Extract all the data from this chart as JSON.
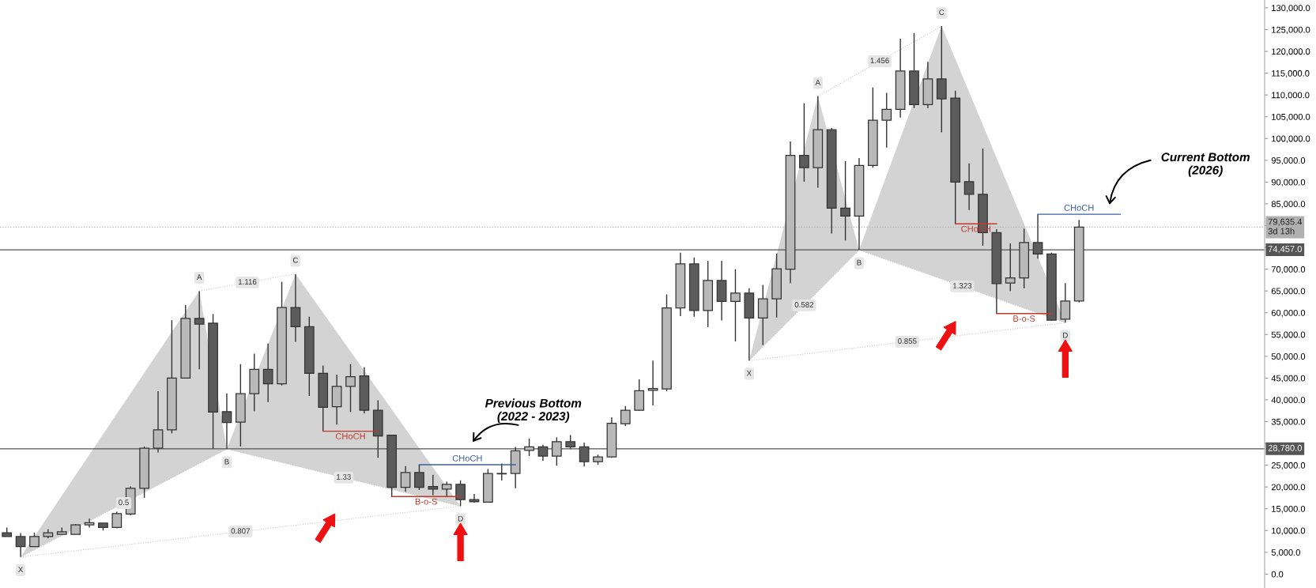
{
  "chart_data": {
    "type": "candlestick",
    "categories": [
      null,
      null,
      null,
      null,
      null,
      null,
      null,
      null,
      null,
      null,
      null,
      null,
      null,
      null,
      null,
      null,
      null,
      null,
      null,
      null,
      null,
      null,
      null,
      null,
      null,
      null,
      null,
      null,
      null,
      null,
      null,
      null,
      null,
      null,
      null,
      null,
      null,
      null,
      null,
      null,
      null,
      null,
      null,
      null,
      null,
      null,
      null,
      null,
      null,
      null,
      null,
      null,
      null,
      null,
      null,
      null,
      null,
      null,
      null,
      null,
      null,
      null,
      null,
      null,
      null,
      null,
      null,
      null,
      null,
      null,
      null,
      null,
      null,
      null,
      null,
      null,
      null,
      null,
      null,
      null,
      null,
      null,
      null,
      null,
      null,
      null,
      null,
      null,
      null,
      null,
      null,
      null
    ],
    "series": [
      {
        "color": "#333333",
        "ohlc": [
          [
            9500,
            10700,
            8600,
            8600
          ],
          [
            8600,
            9400,
            3900,
            6300
          ],
          [
            6300,
            9500,
            6300,
            8600
          ],
          [
            8600,
            10300,
            8200,
            9500
          ],
          [
            9100,
            10700,
            9100,
            9700
          ],
          [
            9100,
            11500,
            9100,
            11300
          ],
          [
            11300,
            12700,
            10700,
            11800
          ],
          [
            11700,
            11700,
            10000,
            10700
          ],
          [
            10700,
            14300,
            10500,
            13900
          ],
          [
            13800,
            20100,
            13500,
            19700
          ],
          [
            19700,
            29300,
            17500,
            28900
          ],
          [
            28900,
            42000,
            27900,
            33100
          ],
          [
            33100,
            58300,
            32300,
            45000
          ],
          [
            45000,
            61800,
            45000,
            58700
          ],
          [
            58700,
            65000,
            47000,
            57400
          ],
          [
            57600,
            59700,
            28800,
            37200
          ],
          [
            37300,
            41500,
            28700,
            34800
          ],
          [
            34900,
            48200,
            29300,
            41400
          ],
          [
            41400,
            50600,
            37400,
            47000
          ],
          [
            47000,
            52900,
            39500,
            43700
          ],
          [
            43700,
            67100,
            43300,
            61200
          ],
          [
            61200,
            68900,
            53300,
            56800
          ],
          [
            56800,
            59100,
            40900,
            46100
          ],
          [
            46100,
            47900,
            32800,
            38300
          ],
          [
            38400,
            45800,
            34300,
            43100
          ],
          [
            43100,
            48200,
            37200,
            45300
          ],
          [
            45500,
            47500,
            36900,
            37600
          ],
          [
            37600,
            39900,
            26700,
            31700
          ],
          [
            31900,
            32000,
            17800,
            19900
          ],
          [
            19900,
            24800,
            18900,
            23300
          ],
          [
            23300,
            25100,
            19300,
            19900
          ],
          [
            20100,
            22800,
            18100,
            19500
          ],
          [
            19500,
            21200,
            17800,
            20600
          ],
          [
            20600,
            21500,
            15600,
            17100
          ],
          [
            17100,
            18400,
            16400,
            16600
          ],
          [
            16500,
            24100,
            16500,
            23100
          ],
          [
            23000,
            25400,
            21500,
            23100
          ],
          [
            23100,
            29200,
            19700,
            28300
          ],
          [
            28400,
            31100,
            27100,
            29200
          ],
          [
            29200,
            29700,
            26000,
            27100
          ],
          [
            27100,
            31400,
            24900,
            30400
          ],
          [
            30400,
            31900,
            28700,
            29200
          ],
          [
            29200,
            30200,
            24700,
            25800
          ],
          [
            25800,
            27400,
            25100,
            26900
          ],
          [
            26900,
            36000,
            26700,
            34600
          ],
          [
            34500,
            38600,
            34000,
            37600
          ],
          [
            37600,
            44700,
            37500,
            42100
          ],
          [
            42200,
            49000,
            38700,
            42600
          ],
          [
            42500,
            64200,
            42000,
            61100
          ],
          [
            61100,
            73800,
            59200,
            71200
          ],
          [
            71200,
            72700,
            59100,
            60500
          ],
          [
            60500,
            71900,
            56700,
            67400
          ],
          [
            67400,
            71900,
            58200,
            62600
          ],
          [
            62600,
            70000,
            53400,
            64500
          ],
          [
            64500,
            65600,
            49000,
            58800
          ],
          [
            58800,
            66400,
            52600,
            63200
          ],
          [
            63200,
            73600,
            58900,
            70100
          ],
          [
            70000,
            99300,
            66800,
            96100
          ],
          [
            96100,
            108100,
            90100,
            93300
          ],
          [
            93300,
            109700,
            88700,
            102000
          ],
          [
            102000,
            102400,
            78200,
            84000
          ],
          [
            84000,
            94800,
            76600,
            82200
          ],
          [
            82200,
            95500,
            74400,
            93800
          ],
          [
            93800,
            111700,
            93300,
            104200
          ],
          [
            104200,
            110500,
            97900,
            106700
          ],
          [
            106700,
            122900,
            104800,
            115500
          ],
          [
            115500,
            124200,
            107000,
            107800
          ],
          [
            107800,
            117600,
            107000,
            113700
          ],
          [
            113700,
            125800,
            101400,
            109100
          ],
          [
            109300,
            111000,
            80400,
            90000
          ],
          [
            90100,
            94300,
            83600,
            87200
          ],
          [
            87200,
            97700,
            75400,
            78400
          ],
          [
            78400,
            79200,
            59800,
            66700
          ],
          [
            66800,
            75900,
            65000,
            68000
          ],
          [
            68000,
            79300,
            65600,
            76100
          ],
          [
            76100,
            82600,
            72400,
            73500
          ],
          [
            73500,
            73800,
            58200,
            58300
          ],
          [
            58500,
            66800,
            57700,
            62700
          ],
          [
            62700,
            81300,
            62400,
            79635.4
          ],
          null,
          null,
          null,
          null,
          null,
          null,
          null,
          null,
          null,
          null,
          null,
          null,
          null
        ],
        "colors": [
          "#5c5c5c",
          "#5c5c5c",
          "#b9b9b9",
          "#b9b9b9",
          "#b9b9b9",
          "#b9b9b9",
          "#b9b9b9",
          "#5c5c5c",
          "#b9b9b9",
          "#b9b9b9",
          "#b9b9b9",
          "#b9b9b9",
          "#b9b9b9",
          "#b9b9b9",
          "#5c5c5c",
          "#5c5c5c",
          "#5c5c5c",
          "#b9b9b9",
          "#b9b9b9",
          "#5c5c5c",
          "#b9b9b9",
          "#5c5c5c",
          "#5c5c5c",
          "#5c5c5c",
          "#b9b9b9",
          "#b9b9b9",
          "#5c5c5c",
          "#5c5c5c",
          "#5c5c5c",
          "#b9b9b9",
          "#5c5c5c",
          "#5c5c5c",
          "#b9b9b9",
          "#5c5c5c",
          "#5c5c5c",
          "#b9b9b9",
          "#b9b9b9",
          "#b9b9b9",
          "#b9b9b9",
          "#5c5c5c",
          "#b9b9b9",
          "#5c5c5c",
          "#5c5c5c",
          "#b9b9b9",
          "#b9b9b9",
          "#b9b9b9",
          "#b9b9b9",
          "#b9b9b9",
          "#b9b9b9",
          "#b9b9b9",
          "#5c5c5c",
          "#b9b9b9",
          "#5c5c5c",
          "#b9b9b9",
          "#5c5c5c",
          "#b9b9b9",
          "#b9b9b9",
          "#b9b9b9",
          "#5c5c5c",
          "#b9b9b9",
          "#5c5c5c",
          "#5c5c5c",
          "#b9b9b9",
          "#b9b9b9",
          "#b9b9b9",
          "#b9b9b9",
          "#5c5c5c",
          "#b9b9b9",
          "#5c5c5c",
          "#5c5c5c",
          "#5c5c5c",
          "#5c5c5c",
          "#5c5c5c",
          "#b9b9b9",
          "#b9b9b9",
          "#5c5c5c",
          "#5c5c5c",
          "#b9b9b9",
          "#b9b9b9",
          null,
          null,
          null,
          null,
          null,
          null,
          null,
          null,
          null,
          null,
          null,
          null,
          null
        ]
      },
      {
        "type": "line",
        "name": "CHoCH",
        "color": "#c0392b",
        "values": [
          null,
          null,
          null,
          null,
          null,
          null,
          null,
          null,
          null,
          null,
          null,
          null,
          null,
          null,
          null,
          null,
          null,
          null,
          null,
          null,
          null,
          null,
          null,
          32800,
          32800,
          32800,
          32800,
          32800,
          null,
          null,
          null,
          null,
          null,
          null,
          null,
          null,
          null,
          null,
          null,
          null,
          null,
          null,
          null,
          null,
          null,
          null,
          null,
          null,
          null,
          null,
          null,
          null,
          null,
          null,
          null,
          null,
          null,
          null,
          null,
          null,
          null,
          null,
          null,
          null,
          null,
          null,
          null,
          null,
          null,
          null,
          null,
          null,
          null,
          null,
          null,
          null,
          null,
          null,
          null,
          null,
          null,
          null,
          null,
          null,
          null,
          null,
          null,
          null,
          null,
          null,
          null,
          null
        ]
      },
      {
        "type": "line",
        "name": "B-o-S",
        "color": "#c0392b",
        "values": [
          null,
          null,
          null,
          null,
          null,
          null,
          null,
          null,
          null,
          null,
          null,
          null,
          null,
          null,
          null,
          null,
          null,
          null,
          null,
          null,
          null,
          null,
          null,
          null,
          null,
          null,
          null,
          null,
          17800,
          17800,
          17800,
          17800,
          17800,
          17800,
          null,
          null,
          null,
          null,
          null,
          null,
          null,
          null,
          null,
          null,
          null,
          null,
          null,
          null,
          null,
          null,
          null,
          null,
          null,
          null,
          null,
          null,
          null,
          null,
          null,
          null,
          null,
          null,
          null,
          null,
          null,
          null,
          null,
          null,
          null,
          null,
          null,
          null,
          null,
          null,
          null,
          null,
          null,
          null,
          null,
          null,
          null,
          null,
          null,
          null,
          null,
          null,
          null,
          null,
          null,
          null,
          null,
          null
        ]
      },
      {
        "type": "line",
        "name": "CHoCH",
        "color": "#3a5fa0",
        "values": [
          null,
          null,
          null,
          null,
          null,
          null,
          null,
          null,
          null,
          null,
          null,
          null,
          null,
          null,
          null,
          null,
          null,
          null,
          null,
          null,
          null,
          null,
          null,
          null,
          null,
          null,
          null,
          null,
          null,
          null,
          25100,
          25100,
          25100,
          25100,
          25100,
          25100,
          25100,
          25100,
          null,
          null,
          null,
          null,
          null,
          null,
          null,
          null,
          null,
          null,
          null,
          null,
          null,
          null,
          null,
          null,
          null,
          null,
          null,
          null,
          null,
          null,
          null,
          null,
          null,
          null,
          null,
          null,
          null,
          null,
          null,
          null,
          null,
          null,
          null,
          null,
          null,
          null,
          null,
          null,
          null,
          null,
          null,
          null,
          null,
          null,
          null,
          null,
          null,
          null,
          null,
          null,
          null,
          null
        ]
      },
      {
        "type": "line",
        "name": "CHoCH",
        "color": "#c0392b",
        "values": [
          null,
          null,
          null,
          null,
          null,
          null,
          null,
          null,
          null,
          null,
          null,
          null,
          null,
          null,
          null,
          null,
          null,
          null,
          null,
          null,
          null,
          null,
          null,
          null,
          null,
          null,
          null,
          null,
          null,
          null,
          null,
          null,
          null,
          null,
          null,
          null,
          null,
          null,
          null,
          null,
          null,
          null,
          null,
          null,
          null,
          null,
          null,
          null,
          null,
          null,
          null,
          null,
          null,
          null,
          null,
          null,
          null,
          null,
          null,
          null,
          null,
          null,
          null,
          null,
          null,
          null,
          null,
          null,
          null,
          80400,
          80400,
          80400,
          80400,
          null,
          null,
          null,
          null,
          null,
          null,
          null,
          null,
          null,
          null,
          null,
          null,
          null,
          null,
          null,
          null,
          null,
          null,
          null
        ]
      },
      {
        "type": "line",
        "name": "B-o-S",
        "color": "#c0392b",
        "values": [
          null,
          null,
          null,
          null,
          null,
          null,
          null,
          null,
          null,
          null,
          null,
          null,
          null,
          null,
          null,
          null,
          null,
          null,
          null,
          null,
          null,
          null,
          null,
          null,
          null,
          null,
          null,
          null,
          null,
          null,
          null,
          null,
          null,
          null,
          null,
          null,
          null,
          null,
          null,
          null,
          null,
          null,
          null,
          null,
          null,
          null,
          null,
          null,
          null,
          null,
          null,
          null,
          null,
          null,
          null,
          null,
          null,
          null,
          null,
          null,
          null,
          null,
          null,
          null,
          null,
          null,
          null,
          null,
          null,
          null,
          null,
          null,
          59800,
          59800,
          59800,
          59800,
          59800,
          null,
          null,
          null,
          null,
          null,
          null,
          null,
          null,
          null,
          null,
          null,
          null,
          null,
          null,
          null
        ]
      },
      {
        "type": "line",
        "name": "CHoCH",
        "color": "#3a5fa0",
        "values": [
          null,
          null,
          null,
          null,
          null,
          null,
          null,
          null,
          null,
          null,
          null,
          null,
          null,
          null,
          null,
          null,
          null,
          null,
          null,
          null,
          null,
          null,
          null,
          null,
          null,
          null,
          null,
          null,
          null,
          null,
          null,
          null,
          null,
          null,
          null,
          null,
          null,
          null,
          null,
          null,
          null,
          null,
          null,
          null,
          null,
          null,
          null,
          null,
          null,
          null,
          null,
          null,
          null,
          null,
          null,
          null,
          null,
          null,
          null,
          null,
          null,
          null,
          null,
          null,
          null,
          null,
          null,
          null,
          null,
          null,
          null,
          null,
          null,
          null,
          null,
          82600,
          82600,
          82600,
          82600,
          82600,
          82600,
          82600,
          null,
          null,
          null,
          null,
          null,
          null,
          null,
          null,
          null,
          null
        ]
      }
    ],
    "ylim": [
      -3200,
      131800
    ],
    "yticks": [
      {
        "value": 0,
        "label": "0.0"
      },
      {
        "value": 5000,
        "label": "5,000.0"
      },
      {
        "value": 10000,
        "label": "10,000.0"
      },
      {
        "value": 15000,
        "label": "15,000.0"
      },
      {
        "value": 20000,
        "label": "20,000.0"
      },
      {
        "value": 25000,
        "label": "25,000.0"
      },
      {
        "value": 30000,
        "label": null
      },
      {
        "value": 35000,
        "label": "35,000.0"
      },
      {
        "value": 40000,
        "label": "40,000.0"
      },
      {
        "value": 45000,
        "label": "45,000.0"
      },
      {
        "value": 50000,
        "label": "50,000.0"
      },
      {
        "value": 55000,
        "label": "55,000.0"
      },
      {
        "value": 60000,
        "label": "60,000.0"
      },
      {
        "value": 65000,
        "label": "65,000.0"
      },
      {
        "value": 70000,
        "label": "70,000.0"
      },
      {
        "value": 75000,
        "label": null
      },
      {
        "value": 80000,
        "label": null
      },
      {
        "value": 85000,
        "label": "85,000.0"
      },
      {
        "value": 90000,
        "label": "90,000.0"
      },
      {
        "value": 95000,
        "label": "95,000.0"
      },
      {
        "value": 100000,
        "label": "100,000.0"
      },
      {
        "value": 105000,
        "label": "105,000.0"
      },
      {
        "value": 110000,
        "label": "110,000.0"
      },
      {
        "value": 115000,
        "label": "115,000.0"
      },
      {
        "value": 120000,
        "label": "120,000.0"
      },
      {
        "value": 125000,
        "label": "125,000.0"
      },
      {
        "value": 130000,
        "label": "130,000.0"
      }
    ],
    "tick_labels": "y",
    "grid": false,
    "ref_lines": [
      {
        "axis": "y",
        "value": 28780,
        "label": "28,780.0",
        "color": "#555555",
        "line_style": "solid"
      },
      {
        "axis": "y",
        "value": 74457,
        "label": "74,457.0",
        "color": "#555555",
        "line_style": "solid"
      },
      {
        "axis": "y",
        "value": 79635.4,
        "label": "79,635.4\n3d 13h",
        "color": "#b0b0b0",
        "line_style": "dotted"
      }
    ],
    "annotations": [
      "X",
      "A",
      "B",
      "C",
      "D",
      "0.5",
      "1.116",
      "1.33",
      "0.807",
      "Previous Bottom\n(2022 - 2023)",
      "X",
      "A",
      "B",
      "C",
      "D",
      "0.582",
      "1.456",
      "1.323",
      "0.855",
      "Current Bottom\n(2026)"
    ]
  }
}
